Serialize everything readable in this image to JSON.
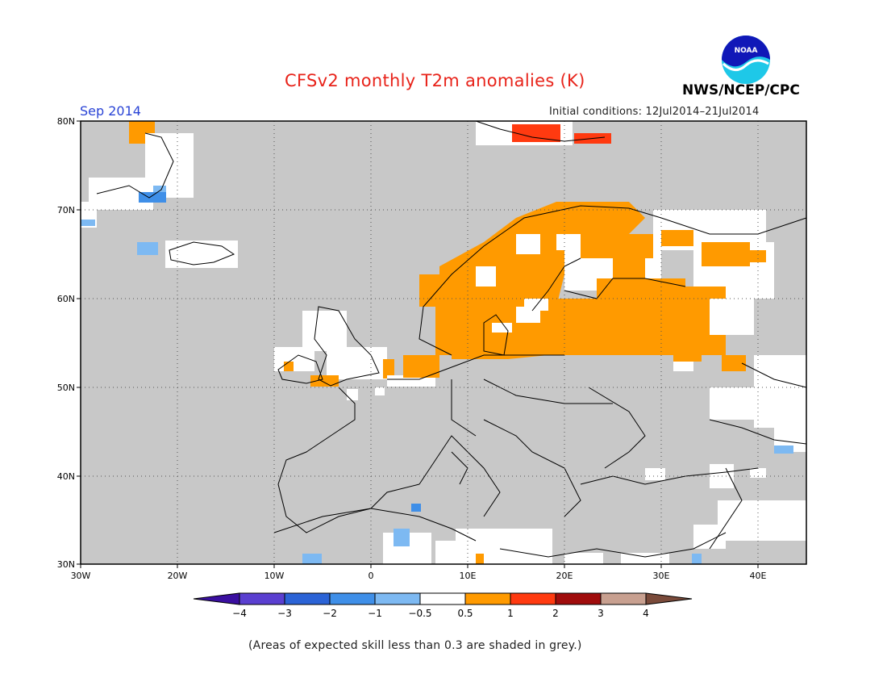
{
  "header": {
    "title": "CFSv2 monthly T2m anomalies (K)",
    "month": "Sep 2014",
    "initial_conditions": "Initial conditions: 12Jul2014–21Jul2014",
    "agency": "NWS/NCEP/CPC",
    "logo_text": "NOAA"
  },
  "map": {
    "projection": "lat-lon",
    "lon_range": [
      -30,
      45
    ],
    "lat_range": [
      30,
      80
    ],
    "lat_labels": [
      "80N",
      "70N",
      "60N",
      "50N",
      "40N",
      "30N"
    ],
    "lon_labels": [
      "30W",
      "20W",
      "10W",
      "0",
      "10E",
      "20E",
      "30E",
      "40E"
    ],
    "grid": "dotted, 10 degree",
    "background_skill_color": "#c8c8c8",
    "regions": [
      {
        "name": "Scandinavia",
        "anomaly": "0.5 to 1"
      },
      {
        "name": "Western Russia",
        "anomaly": "0.5 to 1"
      },
      {
        "name": "Svalbard",
        "anomaly": "1 to 2"
      },
      {
        "name": "Greenland coast",
        "anomaly": "-1 to -0.5"
      }
    ]
  },
  "colorbar": {
    "labels": [
      "−4",
      "−3",
      "−2",
      "−1",
      "−0.5",
      "0.5",
      "1",
      "2",
      "3",
      "4"
    ],
    "colors": [
      "#3a0fa0",
      "#5a3fd0",
      "#2b63d6",
      "#3f8fe8",
      "#7db9f2",
      "#ffffff",
      "#ff9a00",
      "#ff3a10",
      "#a00c0c",
      "#c8a090",
      "#7a4a3a"
    ]
  },
  "footnote": "(Areas of expected skill less than 0.3 are shaded in grey.)"
}
